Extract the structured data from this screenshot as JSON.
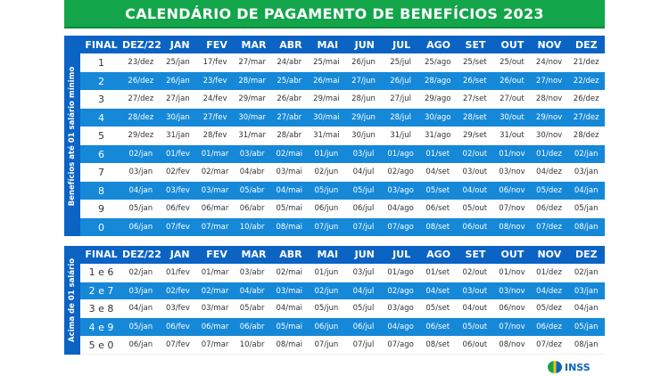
{
  "title": "CALENDÁRIO DE PAGAMENTO DE BENEFÍCIOS 2023",
  "colors": {
    "banner": "#12a54a",
    "header": "#0b63c4",
    "row_blue": "#1688d8"
  },
  "logo_text": "INSS",
  "columns": [
    "FINAL",
    "DEZ/22",
    "JAN",
    "FEV",
    "MAR",
    "ABR",
    "MAI",
    "JUN",
    "JUL",
    "AGO",
    "SET",
    "OUT",
    "NOV",
    "DEZ"
  ],
  "tables": [
    {
      "side_label": "Benefícios até 01 salário mínimo",
      "rows": [
        [
          "1",
          "23/dez",
          "25/jan",
          "17/fev",
          "27/mar",
          "24/abr",
          "25/mai",
          "26/jun",
          "25/jul",
          "25/ago",
          "25/set",
          "25/out",
          "24/nov",
          "21/dez"
        ],
        [
          "2",
          "26/dez",
          "26/jan",
          "23/fev",
          "28/mar",
          "25/abr",
          "26/mai",
          "27/jun",
          "26/jul",
          "28/ago",
          "26/set",
          "26/out",
          "27/nov",
          "22/dez"
        ],
        [
          "3",
          "27/dez",
          "27/jan",
          "24/fev",
          "29/mar",
          "26/abr",
          "29/mai",
          "28/jun",
          "27/jul",
          "29/ago",
          "27/set",
          "27/out",
          "28/nov",
          "26/dez"
        ],
        [
          "4",
          "28/dez",
          "30/jan",
          "27/fev",
          "30/mar",
          "27/abr",
          "30/mai",
          "29/jun",
          "28/jul",
          "30/ago",
          "28/set",
          "30/out",
          "29/nov",
          "27/dez"
        ],
        [
          "5",
          "29/dez",
          "31/jan",
          "28/fev",
          "31/mar",
          "28/abr",
          "31/mai",
          "30/jun",
          "31/jul",
          "31/ago",
          "29/set",
          "31/out",
          "30/nov",
          "28/dez"
        ],
        [
          "6",
          "02/jan",
          "01/fev",
          "01/mar",
          "03/abr",
          "02/mai",
          "01/jun",
          "03/jul",
          "01/ago",
          "01/set",
          "02/out",
          "01/nov",
          "01/dez",
          "02/jan"
        ],
        [
          "7",
          "03/jan",
          "02/fev",
          "02/mar",
          "04/abr",
          "03/mai",
          "02/jun",
          "04/jul",
          "02/ago",
          "04/set",
          "03/out",
          "03/nov",
          "04/dez",
          "03/jan"
        ],
        [
          "8",
          "04/jan",
          "03/fev",
          "03/mar",
          "05/abr",
          "04/mai",
          "05/jun",
          "05/jul",
          "03/ago",
          "05/set",
          "04/out",
          "06/nov",
          "05/dez",
          "04/jan"
        ],
        [
          "9",
          "05/jan",
          "06/fev",
          "06/mar",
          "06/abr",
          "05/mai",
          "06/jun",
          "06/jul",
          "04/ago",
          "06/set",
          "05/out",
          "07/nov",
          "06/dez",
          "05/jan"
        ],
        [
          "0",
          "06/jan",
          "07/fev",
          "07/mar",
          "10/abr",
          "08/mai",
          "07/jun",
          "07/jul",
          "07/ago",
          "08/set",
          "06/out",
          "08/nov",
          "07/dez",
          "08/jan"
        ]
      ]
    },
    {
      "side_label": "Acima de 01 salário",
      "rows": [
        [
          "1 e 6",
          "02/jan",
          "01/fev",
          "01/mar",
          "03/abr",
          "02/mai",
          "01/jun",
          "03/jul",
          "01/ago",
          "01/set",
          "02/out",
          "01/nov",
          "01/dez",
          "02/jan"
        ],
        [
          "2 e 7",
          "03/jan",
          "02/fev",
          "02/mar",
          "04/abr",
          "03/mai",
          "02/jun",
          "04/jul",
          "02/ago",
          "04/set",
          "03/out",
          "03/nov",
          "04/dez",
          "03/jan"
        ],
        [
          "3 e 8",
          "04/jan",
          "03/fev",
          "03/mar",
          "05/abr",
          "04/mai",
          "05/jun",
          "05/jul",
          "03/ago",
          "05/set",
          "04/out",
          "06/nov",
          "05/dez",
          "04/jan"
        ],
        [
          "4 e 9",
          "05/jan",
          "06/fev",
          "06/mar",
          "06/abr",
          "05/mai",
          "06/jun",
          "06/jul",
          "04/ago",
          "06/set",
          "05/out",
          "07/nov",
          "06/dez",
          "05/jan"
        ],
        [
          "5 e 0",
          "06/jan",
          "07/fev",
          "07/mar",
          "10/abr",
          "08/mai",
          "07/jun",
          "07/jul",
          "07/ago",
          "08/set",
          "06/out",
          "08/nov",
          "07/dez",
          "08/jan"
        ]
      ]
    }
  ]
}
